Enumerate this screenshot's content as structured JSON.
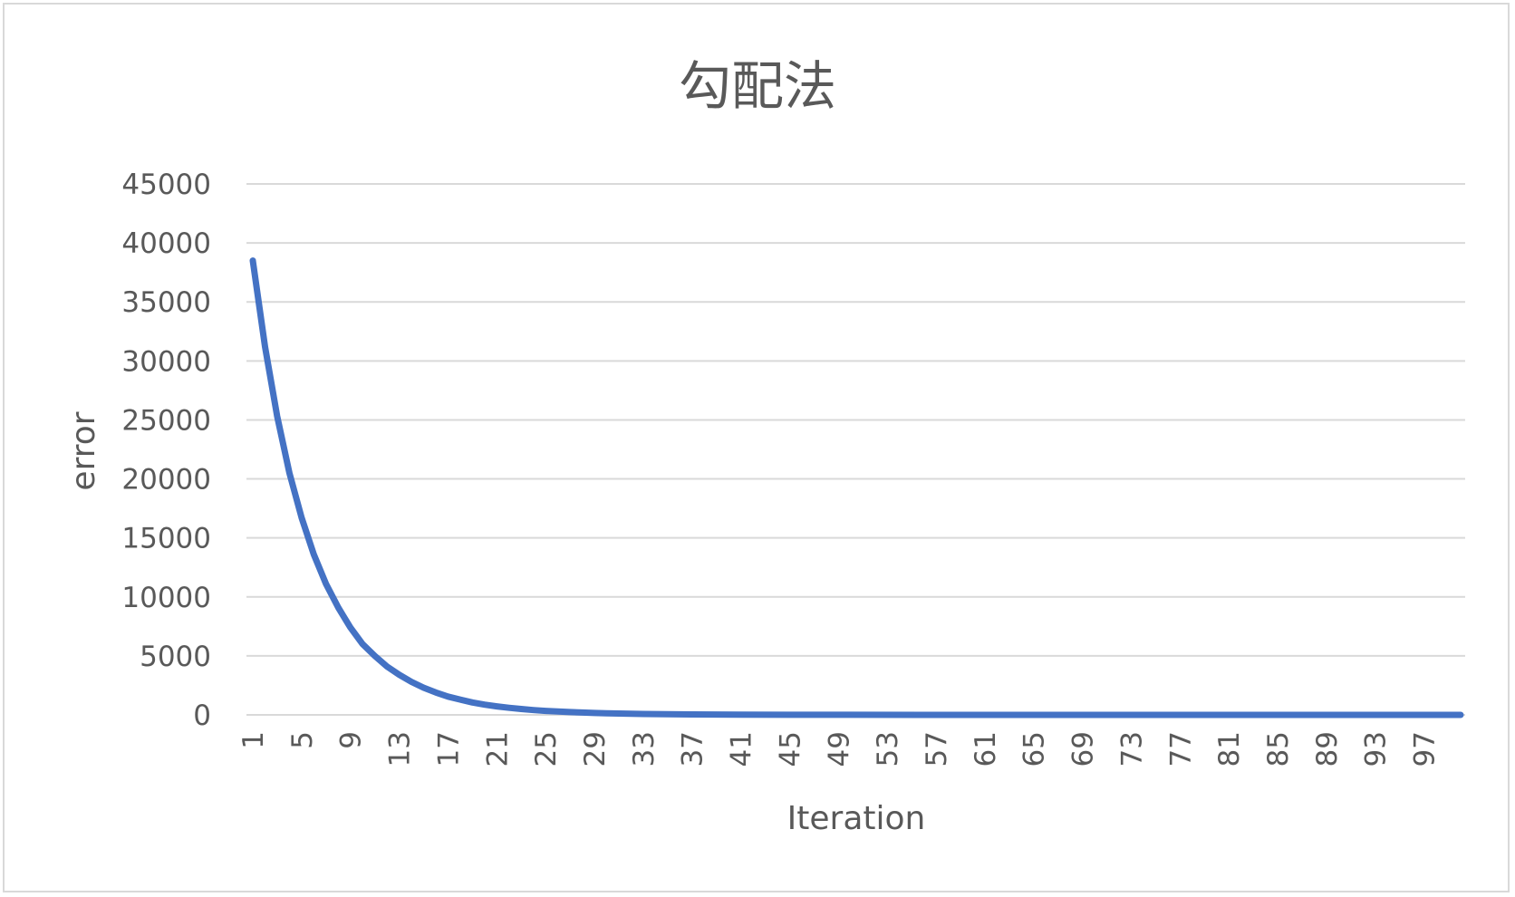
{
  "chart_data": {
    "type": "line",
    "title": "勾配法",
    "xlabel": "Iteration",
    "ylabel": "error",
    "ylim": [
      0,
      45000
    ],
    "yticks": [
      0,
      5000,
      10000,
      15000,
      20000,
      25000,
      30000,
      35000,
      40000,
      45000
    ],
    "xticks": [
      1,
      5,
      9,
      13,
      17,
      21,
      25,
      29,
      33,
      37,
      41,
      45,
      49,
      53,
      57,
      61,
      65,
      69,
      73,
      77,
      81,
      85,
      89,
      93,
      97
    ],
    "x_range": [
      1,
      100
    ],
    "grid": true,
    "legend": "none",
    "series": [
      {
        "color": "#4472c4",
        "x": [
          1,
          2,
          3,
          4,
          5,
          6,
          7,
          8,
          9,
          10,
          11,
          12,
          13,
          14,
          15,
          16,
          17,
          18,
          19,
          20,
          21,
          22,
          23,
          24,
          25,
          26,
          27,
          28,
          29,
          30,
          33,
          37,
          41,
          45,
          50,
          60,
          70,
          80,
          90,
          100
        ],
        "values": [
          38500,
          31200,
          25300,
          20500,
          16700,
          13600,
          11100,
          9100,
          7400,
          6000,
          5000,
          4100,
          3400,
          2800,
          2300,
          1900,
          1550,
          1300,
          1050,
          870,
          720,
          600,
          500,
          410,
          340,
          290,
          240,
          200,
          165,
          135,
          80,
          40,
          20,
          10,
          5,
          2,
          1,
          0,
          0,
          0
        ]
      }
    ]
  }
}
